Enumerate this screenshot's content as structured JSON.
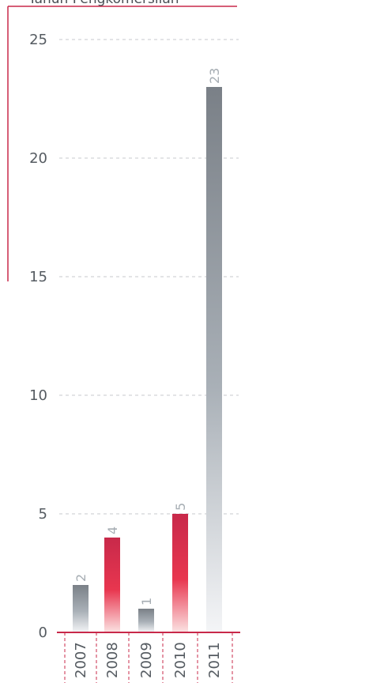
{
  "chart_data": {
    "type": "bar",
    "title": "Tahun Pengkomersilan",
    "categories": [
      "2007",
      "2008",
      "2009",
      "2010",
      "2011"
    ],
    "values": [
      2,
      4,
      1,
      5,
      23
    ],
    "bar_style": [
      "grey",
      "red",
      "grey",
      "red",
      "grey"
    ],
    "ylim": [
      0,
      25
    ],
    "yticks": [
      0,
      5,
      10,
      15,
      20,
      25
    ],
    "grid": true,
    "colors": {
      "grey_top": "#7a8087",
      "grey_bottom": "#f4f5f7",
      "red_top": "#c8294a",
      "red_mid": "#e8364f",
      "red_bottom": "#fbe3e3",
      "accent": "#c8294a",
      "grid": "#c7c9cc",
      "value_label": "#a6adb3"
    }
  }
}
